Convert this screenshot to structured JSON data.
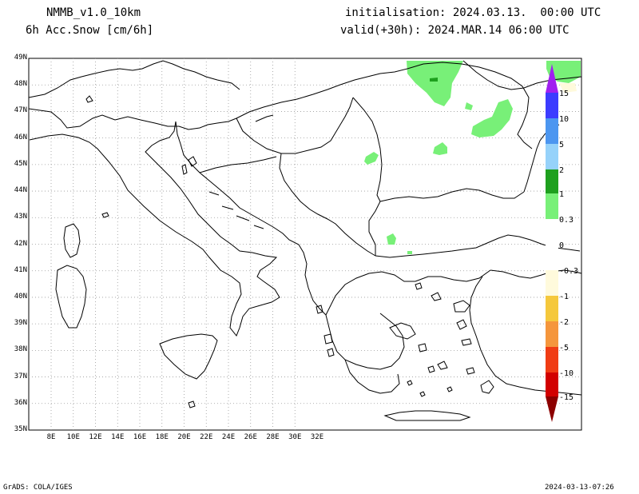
{
  "header": {
    "model": "NMMB_v1.0_10km",
    "field": "6h Acc.Snow [cm/6h]",
    "init": "initialisation: 2024.03.13.  00:00 UTC",
    "valid": "valid(+30h): 2024.MAR.14 06:00 UTC"
  },
  "axes": {
    "lat_labels": [
      "49N",
      "48N",
      "47N",
      "46N",
      "45N",
      "44N",
      "43N",
      "42N",
      "41N",
      "40N",
      "39N",
      "38N",
      "37N",
      "36N",
      "35N"
    ],
    "lon_labels": [
      "8E",
      "10E",
      "12E",
      "14E",
      "16E",
      "18E",
      "20E",
      "22E",
      "24E",
      "26E",
      "28E",
      "30E",
      "32E"
    ]
  },
  "colorbar": {
    "labels": [
      "15",
      "10",
      "5",
      "2",
      "1",
      "0.3",
      "0",
      "-0.3",
      "-1",
      "-2",
      "-5",
      "-10",
      "-15"
    ],
    "colors": {
      "violet": "#a020f0",
      "blue": "#3c3cff",
      "mid_blue": "#4c96f0",
      "light_blue": "#96d2fa",
      "dark_green": "#1ea01e",
      "light_green": "#78f078",
      "white": "#ffffff",
      "cream": "#fffadc",
      "yellow": "#f5c83c",
      "orange": "#f5963c",
      "red_orange": "#f03c14",
      "red": "#d20000",
      "dark_red": "#8c0000"
    }
  },
  "footer": {
    "left": "GrADS: COLA/IGES",
    "right": "2024-03-13-07:26"
  }
}
